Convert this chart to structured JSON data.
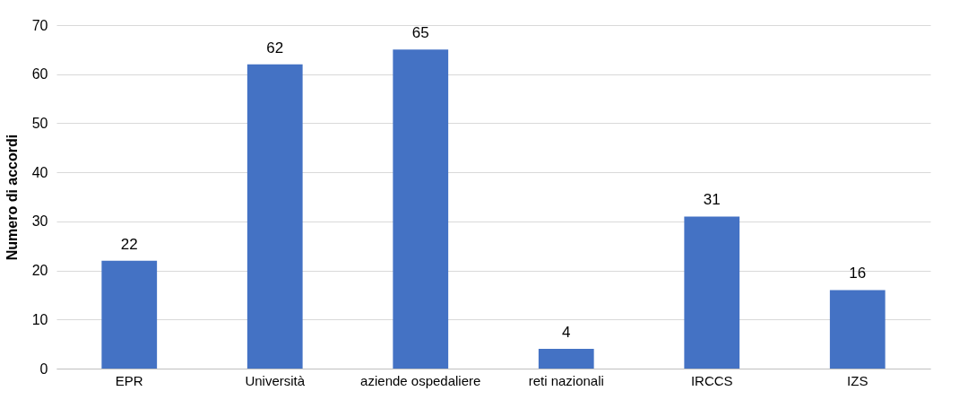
{
  "chart_data": {
    "type": "bar",
    "ylabel": "Numero di accordi",
    "categories": [
      "EPR",
      "Università",
      "aziende ospedaliere",
      "reti nazionali",
      "IRCCS",
      "IZS"
    ],
    "values": [
      22,
      62,
      65,
      4,
      31,
      16
    ],
    "color": "#4472c4",
    "data_labels": true,
    "ylim": [
      0,
      70
    ],
    "yticks": [
      0,
      10,
      20,
      30,
      40,
      50,
      60,
      70
    ],
    "grid": "y"
  }
}
